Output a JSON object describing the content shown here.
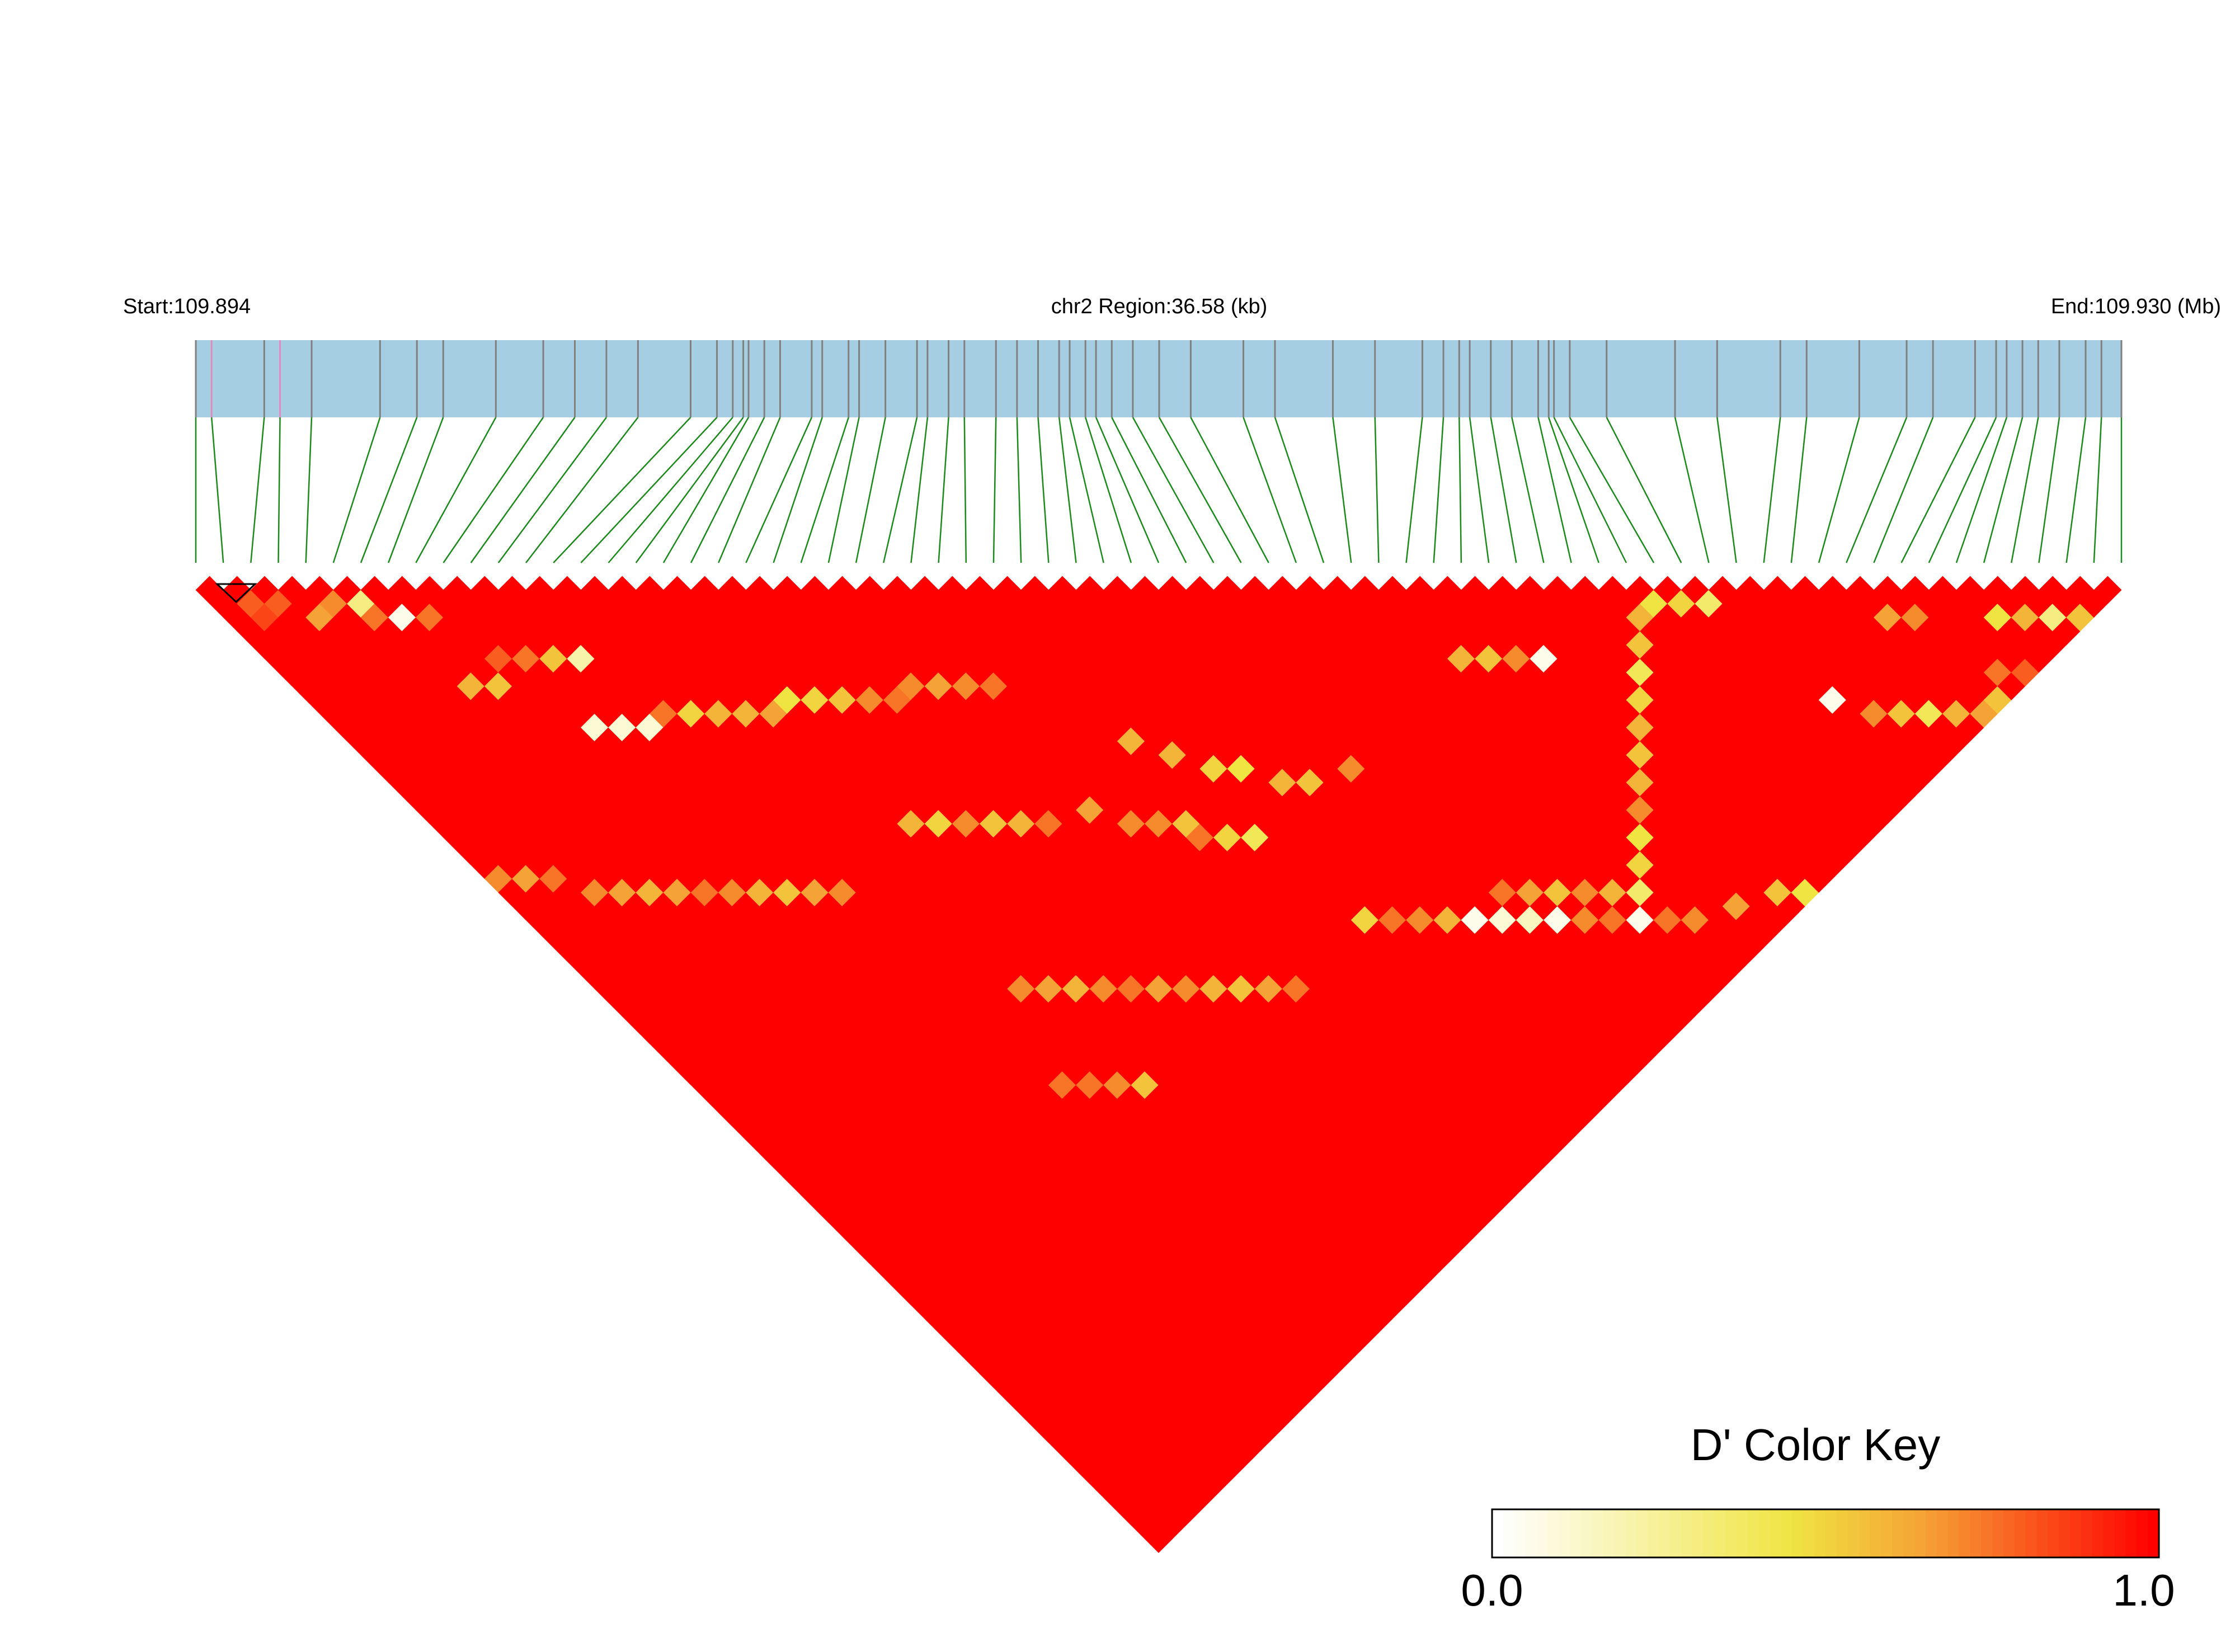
{
  "chart_data": {
    "type": "heatmap",
    "subtype": "linkage-disequilibrium-triangle",
    "region": {
      "start_label": "Start:109.894",
      "region_label": "chr2 Region:36.58 (kb)",
      "end_label": "End:109.930 (Mb)",
      "start_mb": 109.894,
      "end_mb": 109.93,
      "length_kb": 36.58
    },
    "snp_count": 71,
    "snp_positions_kb": [
      0.0,
      0.3,
      1.3,
      1.6,
      2.2,
      3.5,
      4.2,
      4.7,
      5.7,
      6.6,
      7.2,
      7.8,
      8.4,
      9.4,
      9.9,
      10.2,
      10.4,
      10.5,
      10.8,
      11.1,
      11.7,
      11.9,
      12.4,
      12.6,
      13.1,
      13.7,
      13.9,
      14.3,
      14.6,
      15.2,
      15.6,
      16.0,
      16.4,
      16.6,
      16.9,
      17.1,
      17.4,
      17.8,
      18.3,
      18.9,
      19.9,
      20.5,
      21.6,
      22.4,
      23.3,
      23.7,
      24.0,
      24.2,
      24.6,
      25.0,
      25.5,
      25.7,
      25.8,
      26.1,
      26.8,
      28.1,
      28.9,
      30.1,
      30.6,
      31.6,
      32.5,
      33.0,
      33.8,
      34.2,
      34.4,
      34.7,
      35.0,
      35.4,
      35.9,
      36.2,
      36.58
    ],
    "rare_snp_indices": [
      1,
      3
    ],
    "default_value": 1.0,
    "value_rule": "D' = 1.0 for every SNP pair except the pairs listed in low_pairs",
    "low_pairs": [
      [
        1,
        3,
        0.8
      ],
      [
        1,
        4,
        0.85
      ],
      [
        2,
        4,
        0.8
      ],
      [
        3,
        6,
        0.65
      ],
      [
        4,
        6,
        0.7
      ],
      [
        5,
        7,
        0.3
      ],
      [
        5,
        8,
        0.75
      ],
      [
        6,
        9,
        0.05
      ],
      [
        7,
        10,
        0.75
      ],
      [
        6,
        14,
        0.6
      ],
      [
        7,
        15,
        0.55
      ],
      [
        8,
        14,
        0.8
      ],
      [
        9,
        15,
        0.75
      ],
      [
        10,
        16,
        0.55
      ],
      [
        11,
        17,
        0.2
      ],
      [
        9,
        20,
        0.1
      ],
      [
        10,
        21,
        0.1
      ],
      [
        11,
        22,
        0.1
      ],
      [
        12,
        22,
        0.75
      ],
      [
        13,
        23,
        0.5
      ],
      [
        14,
        24,
        0.6
      ],
      [
        15,
        25,
        0.6
      ],
      [
        16,
        26,
        0.65
      ],
      [
        17,
        26,
        0.45
      ],
      [
        18,
        27,
        0.5
      ],
      [
        19,
        28,
        0.55
      ],
      [
        20,
        29,
        0.7
      ],
      [
        21,
        30,
        0.75
      ],
      [
        17,
        35,
        0.6
      ],
      [
        18,
        36,
        0.5
      ],
      [
        19,
        37,
        0.7
      ],
      [
        20,
        38,
        0.55
      ],
      [
        21,
        39,
        0.6
      ],
      [
        22,
        40,
        0.75
      ],
      [
        24,
        41,
        0.65
      ],
      [
        25,
        43,
        0.7
      ],
      [
        26,
        44,
        0.7
      ],
      [
        27,
        46,
        0.75
      ],
      [
        13,
        50,
        0.75
      ],
      [
        14,
        51,
        0.75
      ],
      [
        15,
        52,
        0.7
      ],
      [
        16,
        53,
        0.55
      ],
      [
        30,
        55,
        0.5
      ],
      [
        31,
        56,
        0.75
      ],
      [
        32,
        57,
        0.7
      ],
      [
        33,
        58,
        0.6
      ],
      [
        34,
        59,
        0.05
      ],
      [
        35,
        60,
        0.1
      ],
      [
        36,
        61,
        0.15
      ],
      [
        37,
        62,
        0.05
      ],
      [
        38,
        63,
        0.7
      ],
      [
        39,
        64,
        0.75
      ],
      [
        40,
        65,
        0.05
      ],
      [
        41,
        66,
        0.75
      ],
      [
        42,
        67,
        0.7
      ],
      [
        44,
        68,
        0.65
      ],
      [
        46,
        69,
        0.55
      ],
      [
        47,
        70,
        0.45
      ],
      [
        30,
        44,
        0.5
      ],
      [
        31,
        45,
        0.45
      ],
      [
        32,
        47,
        0.6
      ],
      [
        33,
        48,
        0.55
      ],
      [
        35,
        49,
        0.7
      ],
      [
        29,
        48,
        0.4
      ],
      [
        28,
        47,
        0.5
      ],
      [
        27,
        45,
        0.55
      ],
      [
        28,
        40,
        0.6
      ],
      [
        29,
        42,
        0.6
      ],
      [
        55,
        64,
        0.05
      ],
      [
        56,
        66,
        0.7
      ],
      [
        57,
        67,
        0.55
      ],
      [
        58,
        68,
        0.4
      ],
      [
        59,
        69,
        0.6
      ],
      [
        60,
        70,
        0.65
      ],
      [
        61,
        70,
        0.55
      ],
      [
        62,
        69,
        0.75
      ],
      [
        63,
        70,
        0.8
      ],
      [
        52,
        54,
        0.45
      ],
      [
        53,
        55,
        0.5
      ],
      [
        54,
        56,
        0.35
      ],
      [
        51,
        54,
        0.6
      ],
      [
        50,
        55,
        0.55
      ],
      [
        49,
        56,
        0.4
      ],
      [
        48,
        57,
        0.5
      ],
      [
        47,
        58,
        0.6
      ],
      [
        46,
        59,
        0.55
      ],
      [
        45,
        60,
        0.6
      ],
      [
        44,
        61,
        0.7
      ],
      [
        43,
        62,
        0.45
      ],
      [
        42,
        63,
        0.5
      ],
      [
        41,
        64,
        0.35
      ],
      [
        40,
        63,
        0.6
      ],
      [
        39,
        62,
        0.7
      ],
      [
        38,
        61,
        0.55
      ],
      [
        37,
        60,
        0.65
      ],
      [
        36,
        59,
        0.75
      ],
      [
        66,
        69,
        0.3
      ],
      [
        67,
        70,
        0.55
      ],
      [
        64,
        67,
        0.45
      ],
      [
        65,
        68,
        0.6
      ],
      [
        22,
        30,
        0.7
      ],
      [
        23,
        31,
        0.65
      ],
      [
        24,
        32,
        0.7
      ],
      [
        25,
        33,
        0.75
      ],
      [
        43,
        49,
        0.6
      ],
      [
        44,
        50,
        0.55
      ],
      [
        45,
        51,
        0.7
      ],
      [
        46,
        52,
        0.05
      ],
      [
        60,
        63,
        0.65
      ],
      [
        61,
        64,
        0.7
      ],
      [
        3,
        26,
        0.7
      ],
      [
        4,
        27,
        0.65
      ],
      [
        5,
        28,
        0.6
      ],
      [
        6,
        29,
        0.65
      ],
      [
        7,
        30,
        0.75
      ],
      [
        8,
        31,
        0.7
      ],
      [
        9,
        32,
        0.6
      ],
      [
        10,
        33,
        0.55
      ],
      [
        11,
        34,
        0.65
      ],
      [
        12,
        35,
        0.7
      ],
      [
        2,
        24,
        0.75
      ],
      [
        1,
        23,
        0.65
      ],
      [
        0,
        22,
        0.7
      ],
      [
        15,
        45,
        0.7
      ],
      [
        16,
        46,
        0.65
      ],
      [
        17,
        47,
        0.6
      ],
      [
        18,
        48,
        0.7
      ],
      [
        19,
        49,
        0.75
      ],
      [
        20,
        50,
        0.65
      ],
      [
        21,
        51,
        0.7
      ],
      [
        22,
        52,
        0.6
      ],
      [
        23,
        53,
        0.55
      ],
      [
        24,
        54,
        0.65
      ],
      [
        25,
        55,
        0.75
      ]
    ],
    "color_key": {
      "title": "D' Color Key",
      "min_label": "0.0",
      "max_label": "1.0",
      "min": 0.0,
      "max": 1.0,
      "stops": [
        {
          "v": 0.0,
          "color": "#ffffff"
        },
        {
          "v": 0.45,
          "color": "#f0e442"
        },
        {
          "v": 0.65,
          "color": "#f5a236"
        },
        {
          "v": 1.0,
          "color": "#ff0000"
        }
      ]
    },
    "colors": {
      "gene_bar": "#a6cee3",
      "connector": "#1a8a1a",
      "snp_tick": "#808080",
      "rare_tick": "#e08ac0"
    },
    "grid": false,
    "legend_placement": "bottom-right"
  }
}
